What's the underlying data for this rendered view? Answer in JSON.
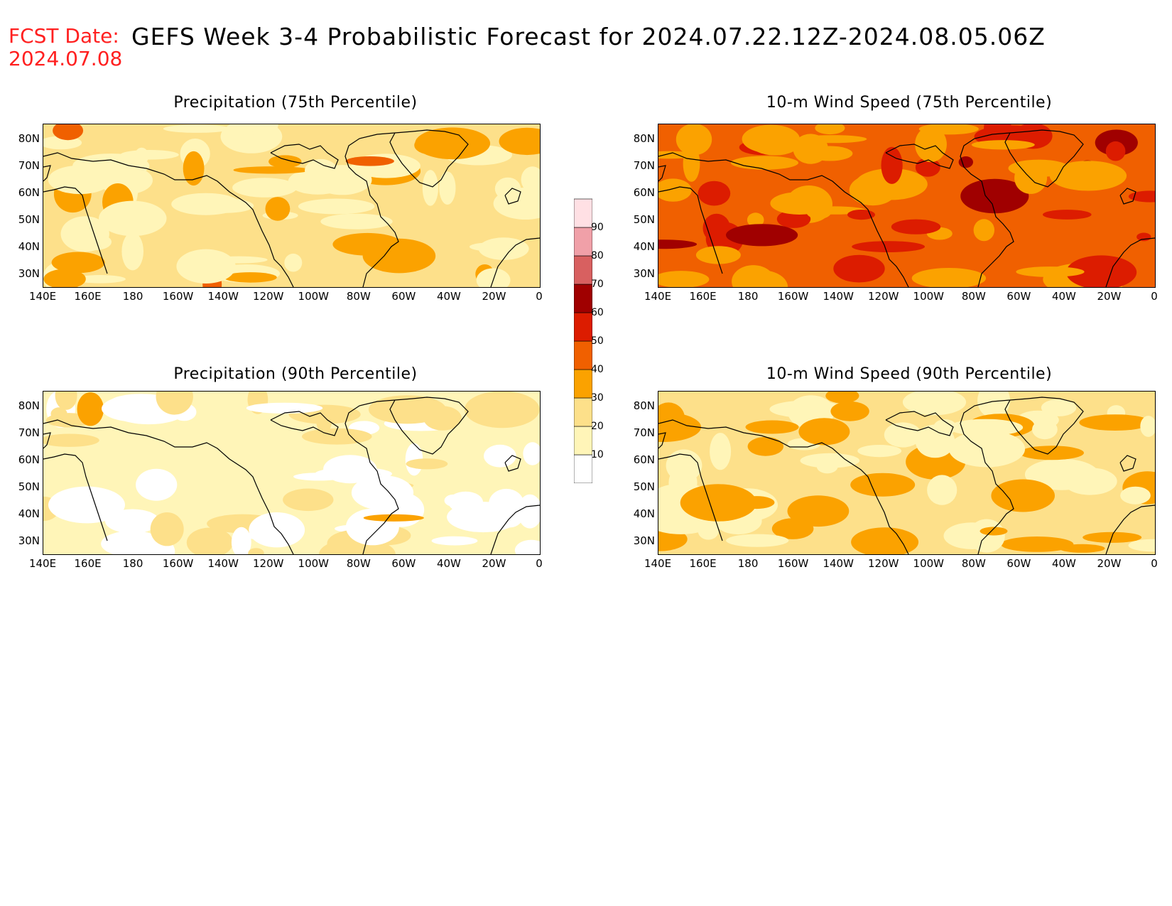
{
  "header": {
    "fcst_label": "FCST Date:",
    "fcst_value": "2024.07.08",
    "title": "GEFS Week 3-4 Probabilistic Forecast for 2024.07.22.12Z-2024.08.05.06Z"
  },
  "panels": [
    {
      "id": "precip75",
      "title": "Precipitation (75th Percentile)",
      "base_level": 20
    },
    {
      "id": "wind75",
      "title": "10-m Wind Speed (75th Percentile)",
      "base_level": 40
    },
    {
      "id": "precip90",
      "title": "Precipitation (90th Percentile)",
      "base_level": 10
    },
    {
      "id": "wind90",
      "title": "10-m Wind Speed (90th Percentile)",
      "base_level": 20
    }
  ],
  "lat_labels": [
    "80N",
    "70N",
    "60N",
    "50N",
    "40N",
    "30N"
  ],
  "lon_labels": [
    "140E",
    "160E",
    "180",
    "160W",
    "140W",
    "120W",
    "100W",
    "80W",
    "60W",
    "40W",
    "20W",
    "0"
  ],
  "colorbar": {
    "labels": [
      "90",
      "80",
      "70",
      "60",
      "50",
      "40",
      "30",
      "20",
      "10"
    ],
    "colors": [
      "#ffffff",
      "#fff5b8",
      "#fde08a",
      "#fba200",
      "#f06000",
      "#dc1c00",
      "#a00000",
      "#d86060",
      "#f0a0a8",
      "#ffe0e4"
    ]
  }
}
